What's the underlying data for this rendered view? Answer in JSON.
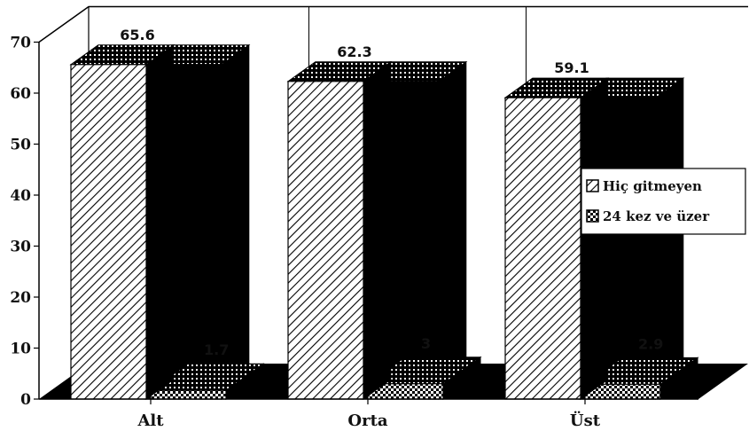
{
  "chart_data": {
    "type": "bar",
    "categories": [
      "Alt",
      "Orta",
      "Üst"
    ],
    "series": [
      {
        "name": "Hiç gitmeyen",
        "values": [
          65.6,
          62.3,
          59.1
        ]
      },
      {
        "name": "24 kez ve üzer",
        "values": [
          1.7,
          3,
          2.9
        ]
      }
    ],
    "value_labels": [
      [
        "65.6",
        "62.3",
        "59.1"
      ],
      [
        "1.7",
        "3",
        "2.9"
      ]
    ],
    "ylim": [
      0,
      70
    ],
    "yticks": [
      "0",
      "10",
      "20",
      "30",
      "40",
      "50",
      "60",
      "70"
    ],
    "grid": "vertical",
    "legend_position": "right",
    "colors": {
      "ink": "#000000",
      "paper": "#ffffff"
    }
  }
}
